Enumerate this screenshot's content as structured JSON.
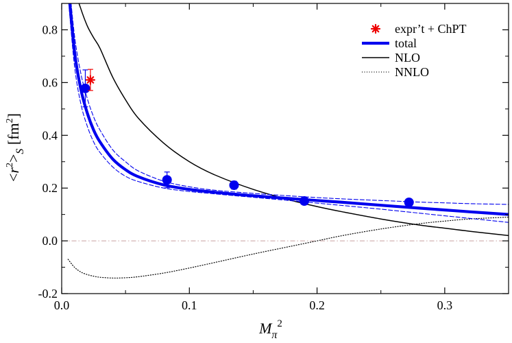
{
  "chart_data": {
    "type": "line",
    "title": "",
    "xlabel": "M_π^2",
    "ylabel": "<r^2>_S [fm^2]",
    "xlim": [
      0.0,
      0.35
    ],
    "ylim": [
      -0.2,
      0.9
    ],
    "x_ticks": [
      {
        "value": 0.0,
        "label": "0.0"
      },
      {
        "value": 0.1,
        "label": "0.1"
      },
      {
        "value": 0.2,
        "label": "0.2"
      },
      {
        "value": 0.3,
        "label": "0.3"
      }
    ],
    "y_ticks": [
      {
        "value": -0.2,
        "label": "-0.2"
      },
      {
        "value": 0.0,
        "label": "0.0"
      },
      {
        "value": 0.2,
        "label": "0.2"
      },
      {
        "value": 0.4,
        "label": "0.4"
      },
      {
        "value": 0.6,
        "label": "0.6"
      },
      {
        "value": 0.8,
        "label": "0.8"
      }
    ],
    "zero_reference_line": {
      "y": 0.0,
      "color": "#c8a0a0",
      "style": "dash-dot"
    },
    "x_grid": [
      0.005,
      0.01,
      0.015,
      0.02,
      0.025,
      0.03,
      0.04,
      0.05,
      0.06,
      0.08,
      0.1,
      0.12,
      0.15,
      0.18,
      0.2,
      0.22,
      0.25,
      0.28,
      0.3,
      0.32,
      0.35
    ],
    "series": [
      {
        "name": "total",
        "legend_label": "total",
        "color": "#0000ee",
        "style": "solid-thick",
        "values": [
          0.975,
          0.72,
          0.575,
          0.485,
          0.42,
          0.375,
          0.31,
          0.27,
          0.243,
          0.212,
          0.195,
          0.184,
          0.171,
          0.16,
          0.153,
          0.146,
          0.135,
          0.124,
          0.117,
          0.11,
          0.1
        ]
      },
      {
        "name": "total upper error band",
        "color": "#0000ee",
        "style": "dashed",
        "values": [
          1.02,
          0.78,
          0.635,
          0.54,
          0.47,
          0.42,
          0.345,
          0.3,
          0.265,
          0.226,
          0.205,
          0.192,
          0.18,
          0.17,
          0.164,
          0.159,
          0.153,
          0.147,
          0.144,
          0.141,
          0.138
        ]
      },
      {
        "name": "total lower error band",
        "color": "#0000ee",
        "style": "dashed",
        "values": [
          0.93,
          0.665,
          0.52,
          0.435,
          0.375,
          0.335,
          0.28,
          0.245,
          0.225,
          0.2,
          0.187,
          0.178,
          0.165,
          0.152,
          0.143,
          0.134,
          0.12,
          0.105,
          0.095,
          0.085,
          0.07
        ]
      },
      {
        "name": "NLO",
        "legend_label": "NLO",
        "color": "#000000",
        "style": "solid",
        "values": [
          1.1,
          0.96,
          0.88,
          0.815,
          0.77,
          0.73,
          0.62,
          0.535,
          0.465,
          0.37,
          0.3,
          0.25,
          0.195,
          0.153,
          0.13,
          0.11,
          0.083,
          0.06,
          0.048,
          0.036,
          0.02
        ]
      },
      {
        "name": "NNLO",
        "legend_label": "NNLO",
        "color": "#000000",
        "style": "dotted",
        "values": [
          -0.07,
          -0.1,
          -0.118,
          -0.128,
          -0.134,
          -0.138,
          -0.141,
          -0.14,
          -0.136,
          -0.122,
          -0.103,
          -0.082,
          -0.05,
          -0.02,
          0.0,
          0.02,
          0.045,
          0.065,
          0.075,
          0.083,
          0.09
        ]
      }
    ],
    "lattice_points": {
      "color": "#0000ee",
      "points": [
        {
          "x": 0.0185,
          "y": 0.578,
          "yerr": 0.07
        },
        {
          "x": 0.0825,
          "y": 0.231,
          "yerr": 0.03
        },
        {
          "x": 0.135,
          "y": 0.211,
          "yerr": 0.015
        },
        {
          "x": 0.19,
          "y": 0.151,
          "yerr": 0.012
        },
        {
          "x": 0.272,
          "y": 0.146,
          "yerr": 0.01
        }
      ]
    },
    "experiment_point": {
      "label": "expr’t + ChPT",
      "color": "#ee0000",
      "x": 0.0225,
      "y": 0.61,
      "yerr": 0.04,
      "xerr": 0.003
    },
    "legend": {
      "position": "top-right",
      "entries": [
        {
          "label": "expr’t + ChPT",
          "kind": "star",
          "color": "#ee0000"
        },
        {
          "label": "total",
          "kind": "line-thick",
          "color": "#0000ee"
        },
        {
          "label": "NLO",
          "kind": "line",
          "color": "#000000"
        },
        {
          "label": "NNLO",
          "kind": "line-dotted",
          "color": "#000000"
        }
      ]
    }
  }
}
